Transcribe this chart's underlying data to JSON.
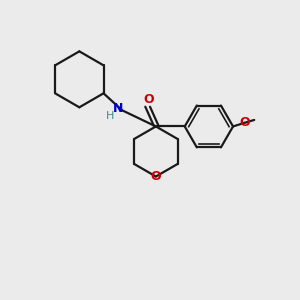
{
  "bg_color": "#ebebeb",
  "line_color": "#1a1a1a",
  "N_color": "#0000cc",
  "O_color": "#cc0000",
  "line_width": 1.6,
  "font_size_N": 9,
  "font_size_H": 8,
  "font_size_O": 9,
  "fig_size": [
    3.0,
    3.0
  ],
  "dpi": 100,
  "xlim": [
    0,
    10
  ],
  "ylim": [
    0,
    10
  ]
}
